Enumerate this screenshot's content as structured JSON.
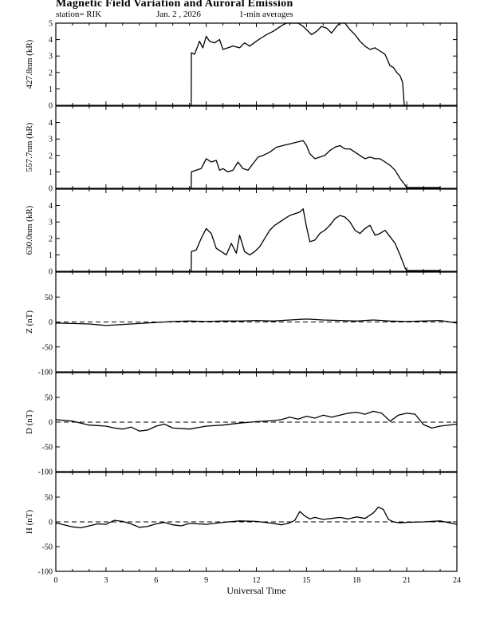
{
  "header": {
    "title": "Magnetic Field Variation and Auroral Emission",
    "station": "station= RIK",
    "date": "Jan. 2 , 2026",
    "averaging": "1-min averages"
  },
  "chart_data": [
    {
      "type": "line",
      "ylabel": "427.8nm (kR)",
      "ylim": [
        0,
        5
      ],
      "yticks": [
        0,
        1,
        2,
        3,
        4,
        5
      ],
      "xlim": [
        0,
        24
      ],
      "series": [
        {
          "x": [
            8.1,
            8.11,
            8.3,
            8.6,
            8.8,
            9.0,
            9.2,
            9.5,
            9.8,
            10.0,
            10.3,
            10.6,
            11.0,
            11.3,
            11.6,
            12.0,
            12.3,
            12.6,
            13.0,
            13.3,
            13.6,
            13.8,
            14.0,
            14.2,
            14.5,
            14.8,
            15.0,
            15.3,
            15.6,
            15.9,
            16.2,
            16.5,
            16.8,
            17.0,
            17.3,
            17.6,
            17.9,
            18.2,
            18.5,
            18.8,
            19.1,
            19.4,
            19.7,
            20.0,
            20.2,
            20.4,
            20.6,
            20.75,
            20.85
          ],
          "y": [
            0,
            3.2,
            3.1,
            3.9,
            3.5,
            4.2,
            3.9,
            3.8,
            4.0,
            3.4,
            3.5,
            3.6,
            3.5,
            3.8,
            3.6,
            3.9,
            4.1,
            4.3,
            4.5,
            4.7,
            4.9,
            5.0,
            5.0,
            5.0,
            5.0,
            4.8,
            4.6,
            4.3,
            4.5,
            4.8,
            4.7,
            4.4,
            4.8,
            5.0,
            5.0,
            4.6,
            4.3,
            3.9,
            3.6,
            3.4,
            3.5,
            3.3,
            3.1,
            2.4,
            2.3,
            2.0,
            1.8,
            1.4,
            0
          ]
        }
      ]
    },
    {
      "type": "line",
      "ylabel": "557.7nm (kR)",
      "ylim": [
        0,
        5
      ],
      "yticks": [
        0,
        1,
        2,
        3,
        4
      ],
      "xlim": [
        0,
        24
      ],
      "series": [
        {
          "x": [
            8.1,
            8.11,
            8.4,
            8.7,
            9.0,
            9.3,
            9.6,
            9.8,
            10.0,
            10.3,
            10.6,
            10.9,
            11.2,
            11.5,
            11.8,
            12.1,
            12.4,
            12.8,
            13.2,
            13.6,
            14.0,
            14.4,
            14.8,
            15.0,
            15.2,
            15.5,
            15.8,
            16.1,
            16.4,
            16.7,
            17.0,
            17.3,
            17.6,
            17.9,
            18.2,
            18.5,
            18.8,
            19.1,
            19.4,
            19.7,
            20.0,
            20.3,
            20.6,
            20.9,
            21.0,
            23.0
          ],
          "y": [
            0,
            1.0,
            1.1,
            1.2,
            1.8,
            1.6,
            1.7,
            1.1,
            1.2,
            1.0,
            1.1,
            1.6,
            1.2,
            1.1,
            1.5,
            1.9,
            2.0,
            2.2,
            2.5,
            2.6,
            2.7,
            2.8,
            2.9,
            2.6,
            2.1,
            1.8,
            1.9,
            2.0,
            2.3,
            2.5,
            2.6,
            2.4,
            2.4,
            2.2,
            2.0,
            1.8,
            1.9,
            1.8,
            1.8,
            1.6,
            1.4,
            1.1,
            0.6,
            0.2,
            0.05,
            0.05
          ]
        }
      ]
    },
    {
      "type": "line",
      "ylabel": "630.0nm (kR)",
      "ylim": [
        0,
        5
      ],
      "yticks": [
        0,
        1,
        2,
        3,
        4
      ],
      "xlim": [
        0,
        24
      ],
      "series": [
        {
          "x": [
            8.1,
            8.11,
            8.4,
            8.7,
            9.0,
            9.3,
            9.6,
            9.9,
            10.2,
            10.5,
            10.8,
            11.0,
            11.3,
            11.6,
            11.9,
            12.2,
            12.5,
            12.8,
            13.1,
            13.4,
            13.7,
            14.0,
            14.3,
            14.6,
            14.8,
            15.0,
            15.2,
            15.5,
            15.8,
            16.1,
            16.4,
            16.7,
            17.0,
            17.3,
            17.6,
            17.9,
            18.2,
            18.5,
            18.8,
            19.1,
            19.4,
            19.7,
            20.0,
            20.3,
            20.6,
            20.9,
            21.0,
            23.0
          ],
          "y": [
            0,
            1.2,
            1.3,
            2.0,
            2.6,
            2.3,
            1.4,
            1.2,
            1.0,
            1.7,
            1.1,
            2.2,
            1.2,
            1.0,
            1.2,
            1.5,
            2.0,
            2.5,
            2.8,
            3.0,
            3.2,
            3.4,
            3.5,
            3.6,
            3.8,
            2.7,
            1.8,
            1.9,
            2.3,
            2.5,
            2.8,
            3.2,
            3.4,
            3.3,
            3.0,
            2.5,
            2.3,
            2.6,
            2.8,
            2.2,
            2.3,
            2.5,
            2.1,
            1.7,
            1.0,
            0.2,
            0.05,
            0.05
          ]
        }
      ]
    },
    {
      "type": "line",
      "ylabel": "Z (nT)",
      "ylim": [
        -100,
        100
      ],
      "yticks": [
        -100,
        -50,
        0,
        50
      ],
      "xlim": [
        0,
        24
      ],
      "baseline": 0,
      "series": [
        {
          "x": [
            0,
            1,
            2,
            3,
            4,
            5,
            6,
            7,
            8,
            9,
            10,
            11,
            12,
            13,
            14,
            15,
            16,
            17,
            18,
            19,
            20,
            21,
            22,
            23,
            24
          ],
          "y": [
            -2,
            -3,
            -4,
            -7,
            -5,
            -3,
            -1,
            1,
            2,
            1,
            2,
            2,
            3,
            2,
            4,
            6,
            4,
            3,
            2,
            4,
            2,
            1,
            2,
            3,
            -2
          ]
        }
      ]
    },
    {
      "type": "line",
      "ylabel": "D (nT)",
      "ylim": [
        -100,
        100
      ],
      "yticks": [
        -100,
        -50,
        0,
        50
      ],
      "xlim": [
        0,
        24
      ],
      "baseline": 0,
      "series": [
        {
          "x": [
            0,
            1,
            2,
            3,
            3.5,
            4,
            4.5,
            5,
            5.5,
            6,
            6.5,
            7,
            8,
            9,
            10,
            11,
            12,
            13,
            13.5,
            14,
            14.5,
            15,
            15.5,
            16,
            16.5,
            17,
            17.5,
            18,
            18.5,
            19,
            19.5,
            20,
            20.5,
            21,
            21.5,
            22,
            22.5,
            23,
            24
          ],
          "y": [
            5,
            2,
            -6,
            -8,
            -12,
            -14,
            -10,
            -18,
            -16,
            -8,
            -4,
            -12,
            -14,
            -8,
            -6,
            -2,
            1,
            3,
            5,
            10,
            6,
            12,
            8,
            14,
            10,
            14,
            18,
            20,
            16,
            22,
            18,
            2,
            14,
            18,
            16,
            -5,
            -12,
            -8,
            -4
          ]
        }
      ]
    },
    {
      "type": "line",
      "ylabel": "H (nT)",
      "ylim": [
        -100,
        100
      ],
      "yticks": [
        -100,
        -50,
        0,
        50
      ],
      "xlim": [
        0,
        24
      ],
      "baseline": 0,
      "series": [
        {
          "x": [
            0,
            0.5,
            1,
            1.5,
            2,
            2.5,
            3,
            3.5,
            4,
            4.5,
            5,
            5.5,
            6,
            6.5,
            7,
            7.5,
            8,
            9,
            10,
            11,
            12,
            13,
            13.5,
            14,
            14.3,
            14.6,
            14.9,
            15.2,
            15.5,
            16,
            16.5,
            17,
            17.5,
            18,
            18.5,
            19,
            19.3,
            19.6,
            19.9,
            20.2,
            20.6,
            21,
            22,
            23,
            24
          ],
          "y": [
            -2,
            -6,
            -10,
            -12,
            -8,
            -4,
            -5,
            3,
            1,
            -4,
            -11,
            -9,
            -4,
            -1,
            -6,
            -8,
            -3,
            -5,
            -1,
            2,
            1,
            -3,
            -6,
            -2,
            3,
            21,
            12,
            6,
            9,
            5,
            7,
            9,
            6,
            10,
            7,
            18,
            30,
            25,
            5,
            0,
            -2,
            -1,
            0,
            2,
            -5
          ]
        }
      ]
    }
  ],
  "xaxis": {
    "ticks": [
      "0",
      "3",
      "6",
      "9",
      "12",
      "15",
      "18",
      "21",
      "24"
    ],
    "label": "Universal Time"
  }
}
